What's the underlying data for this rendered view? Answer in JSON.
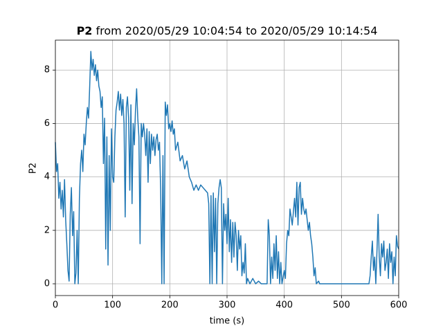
{
  "chart_data": {
    "type": "line",
    "title": {
      "bold": "P2",
      "text": "from 2020/05/29 10:04:54 to 2020/05/29 10:14:54"
    },
    "xlabel": "time (s)",
    "ylabel": "P2",
    "color": "#1f77b4",
    "grid": true,
    "xlim": [
      0,
      600
    ],
    "xticks": [
      0,
      100,
      200,
      300,
      400,
      500,
      600
    ],
    "ylim": [
      -0.44,
      9.12
    ],
    "yticks": [
      0,
      2,
      4,
      6,
      8
    ],
    "x": [
      0,
      2,
      4,
      6,
      8,
      10,
      12,
      14,
      16,
      18,
      20,
      22,
      24,
      26,
      28,
      30,
      32,
      34,
      36,
      38,
      40,
      42,
      44,
      46,
      48,
      50,
      52,
      54,
      56,
      58,
      60,
      62,
      64,
      66,
      68,
      70,
      72,
      74,
      76,
      78,
      80,
      82,
      84,
      86,
      88,
      90,
      92,
      94,
      96,
      98,
      100,
      102,
      104,
      106,
      108,
      110,
      112,
      114,
      116,
      118,
      120,
      122,
      124,
      126,
      128,
      130,
      132,
      134,
      136,
      138,
      140,
      142,
      144,
      146,
      148,
      150,
      152,
      154,
      156,
      158,
      160,
      162,
      164,
      166,
      168,
      170,
      172,
      174,
      176,
      178,
      180,
      182,
      184,
      186,
      188,
      190,
      192,
      194,
      196,
      198,
      200,
      202,
      204,
      206,
      208,
      210,
      214,
      218,
      222,
      226,
      230,
      234,
      238,
      242,
      246,
      250,
      254,
      258,
      262,
      266,
      268,
      270,
      272,
      274,
      276,
      278,
      280,
      282,
      284,
      286,
      288,
      290,
      292,
      294,
      296,
      298,
      300,
      302,
      304,
      306,
      308,
      310,
      312,
      314,
      316,
      318,
      320,
      322,
      324,
      326,
      328,
      330,
      332,
      334,
      336,
      340,
      345,
      350,
      355,
      360,
      370,
      372,
      374,
      376,
      378,
      380,
      382,
      384,
      386,
      388,
      390,
      392,
      394,
      396,
      400,
      402,
      404,
      406,
      408,
      410,
      412,
      414,
      416,
      418,
      420,
      422,
      424,
      426,
      428,
      430,
      432,
      434,
      436,
      438,
      440,
      442,
      444,
      446,
      448,
      450,
      452,
      454,
      456,
      460,
      462,
      470,
      480,
      500,
      520,
      540,
      548,
      550,
      552,
      554,
      556,
      558,
      560,
      562,
      564,
      566,
      568,
      570,
      572,
      574,
      576,
      578,
      580,
      582,
      584,
      586,
      588,
      590,
      592,
      594,
      596,
      598,
      600
    ],
    "values": [
      5.3,
      4.2,
      4.5,
      3.2,
      3.8,
      2.8,
      3.5,
      2.5,
      3.9,
      2.4,
      1.5,
      0.5,
      0.1,
      2.6,
      3.6,
      1.8,
      2.7,
      0.0,
      0.4,
      2.0,
      0.0,
      3.2,
      4.5,
      5.0,
      4.2,
      5.6,
      5.2,
      6.0,
      6.6,
      6.2,
      7.4,
      8.7,
      8.0,
      8.4,
      7.8,
      8.2,
      7.6,
      8.0,
      7.4,
      7.2,
      6.6,
      7.0,
      4.5,
      6.2,
      1.3,
      5.5,
      0.7,
      4.8,
      2.0,
      5.8,
      4.0,
      3.8,
      5.5,
      6.5,
      6.8,
      7.2,
      6.5,
      7.1,
      6.3,
      6.9,
      6.0,
      2.5,
      6.6,
      7.0,
      6.2,
      3.5,
      6.7,
      3.0,
      6.0,
      5.2,
      6.5,
      7.3,
      6.2,
      5.5,
      1.5,
      6.0,
      5.5,
      6.0,
      5.6,
      4.8,
      5.8,
      3.8,
      5.7,
      4.5,
      5.6,
      5.0,
      5.5,
      4.8,
      5.4,
      5.6,
      5.0,
      5.3,
      3.5,
      0.0,
      4.8,
      0.0,
      6.8,
      6.3,
      6.7,
      5.8,
      6.0,
      5.7,
      6.1,
      5.6,
      5.8,
      5.0,
      5.3,
      4.6,
      4.8,
      4.3,
      4.6,
      4.0,
      3.8,
      3.5,
      3.7,
      3.5,
      3.7,
      3.6,
      3.5,
      3.4,
      3.0,
      0.0,
      3.3,
      0.0,
      3.4,
      1.2,
      3.2,
      0.0,
      3.0,
      3.6,
      3.9,
      3.6,
      0.0,
      3.0,
      2.0,
      2.6,
      1.5,
      3.2,
      1.2,
      2.4,
      0.8,
      2.3,
      1.0,
      2.3,
      1.8,
      0.5,
      2.0,
      1.3,
      1.8,
      0.3,
      0.8,
      0.4,
      1.5,
      0.0,
      0.2,
      0.0,
      0.2,
      0.0,
      0.1,
      0.0,
      0.0,
      2.4,
      1.8,
      0.0,
      1.0,
      0.2,
      1.5,
      0.5,
      1.8,
      0.2,
      1.2,
      0.0,
      0.8,
      0.0,
      0.5,
      0.2,
      1.5,
      2.0,
      1.8,
      2.8,
      2.5,
      2.2,
      2.7,
      3.2,
      2.5,
      3.8,
      2.2,
      3.6,
      3.8,
      2.6,
      3.2,
      2.8,
      2.6,
      2.8,
      2.4,
      2.0,
      2.3,
      1.8,
      1.5,
      1.0,
      0.3,
      0.6,
      0.0,
      0.1,
      0.0,
      0.0,
      0.0,
      0.0,
      0.0,
      0.0,
      0.0,
      0.3,
      1.0,
      1.6,
      0.5,
      1.0,
      0.0,
      1.2,
      2.6,
      1.0,
      0.3,
      1.5,
      1.0,
      1.6,
      0.5,
      0.8,
      1.3,
      0.2,
      1.5,
      0.8,
      1.2,
      0.0,
      1.0,
      0.3,
      1.8,
      1.4,
      1.3
    ]
  }
}
